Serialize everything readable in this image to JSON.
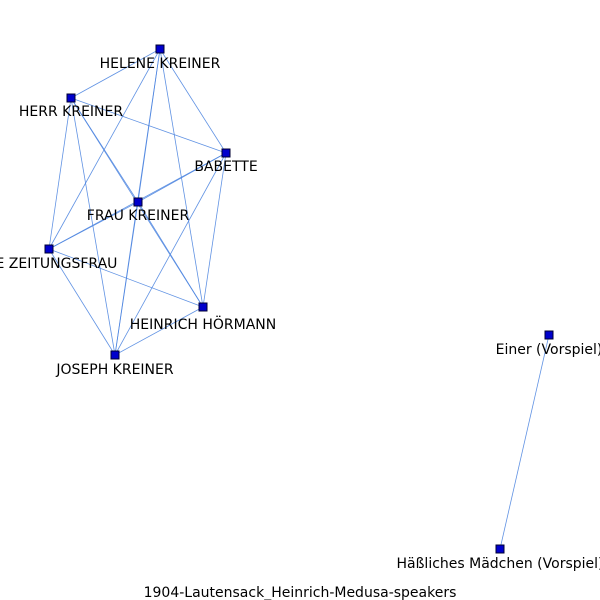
{
  "title": "1904-Lautensack_Heinrich-Medusa-speakers",
  "colors": {
    "edge": "#4f86e0",
    "node": "#0000cc",
    "label": "#000000",
    "background": "#ffffff"
  },
  "nodes": [
    {
      "id": "helene",
      "label": "HELENE KREINER"
    },
    {
      "id": "herr",
      "label": "HERR KREINER"
    },
    {
      "id": "babette",
      "label": "BABETTE"
    },
    {
      "id": "frau",
      "label": "FRAU KREINER"
    },
    {
      "id": "zeitungsfrau",
      "label": "DIE ZEITUNGSFRAU"
    },
    {
      "id": "heinrich",
      "label": "HEINRICH HÖRMANN"
    },
    {
      "id": "joseph",
      "label": "JOSEPH KREINER"
    },
    {
      "id": "einer",
      "label": "Einer (Vorspiel)"
    },
    {
      "id": "haessliches",
      "label": "Häßliches Mädchen (Vorspiel)"
    }
  ],
  "edges": [
    [
      "helene",
      "herr"
    ],
    [
      "helene",
      "babette"
    ],
    [
      "helene",
      "frau"
    ],
    [
      "helene",
      "zeitungsfrau"
    ],
    [
      "helene",
      "heinrich"
    ],
    [
      "helene",
      "joseph"
    ],
    [
      "herr",
      "babette"
    ],
    [
      "herr",
      "frau"
    ],
    [
      "herr",
      "zeitungsfrau"
    ],
    [
      "herr",
      "heinrich"
    ],
    [
      "herr",
      "joseph"
    ],
    [
      "babette",
      "frau"
    ],
    [
      "babette",
      "zeitungsfrau"
    ],
    [
      "babette",
      "heinrich"
    ],
    [
      "babette",
      "joseph"
    ],
    [
      "frau",
      "zeitungsfrau"
    ],
    [
      "frau",
      "heinrich"
    ],
    [
      "frau",
      "joseph"
    ],
    [
      "zeitungsfrau",
      "heinrich"
    ],
    [
      "zeitungsfrau",
      "joseph"
    ],
    [
      "heinrich",
      "joseph"
    ],
    [
      "einer",
      "haessliches"
    ]
  ]
}
